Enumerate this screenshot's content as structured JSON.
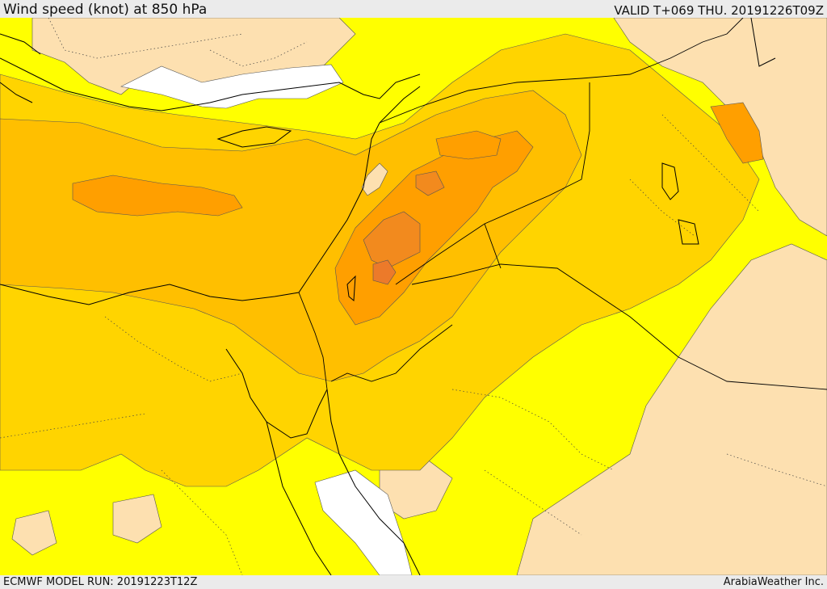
{
  "header": {
    "title": "Wind speed (knot) at 850 hPa",
    "valid": "VALID T+069 THU. 20191226T09Z"
  },
  "footer": {
    "model_run": "ECMWF MODEL RUN: 20191223T12Z",
    "credit": "ArabiaWeather Inc."
  },
  "map": {
    "region": "Eastern Mediterranean, Levant, Egypt, Arabian Peninsula",
    "field": "850 hPa wind speed",
    "palette": {
      "very_low": "#ffffff",
      "low": "#fde0b0",
      "light": "#ffff00",
      "moderate": "#ffd400",
      "medium": "#ffbf00",
      "strong": "#ff9f00",
      "very_strong": "#f28a1e",
      "peak": "#ec7a2a"
    },
    "line_colors": {
      "coast": "#000000",
      "border": "#000000",
      "contour": "#555555"
    }
  }
}
